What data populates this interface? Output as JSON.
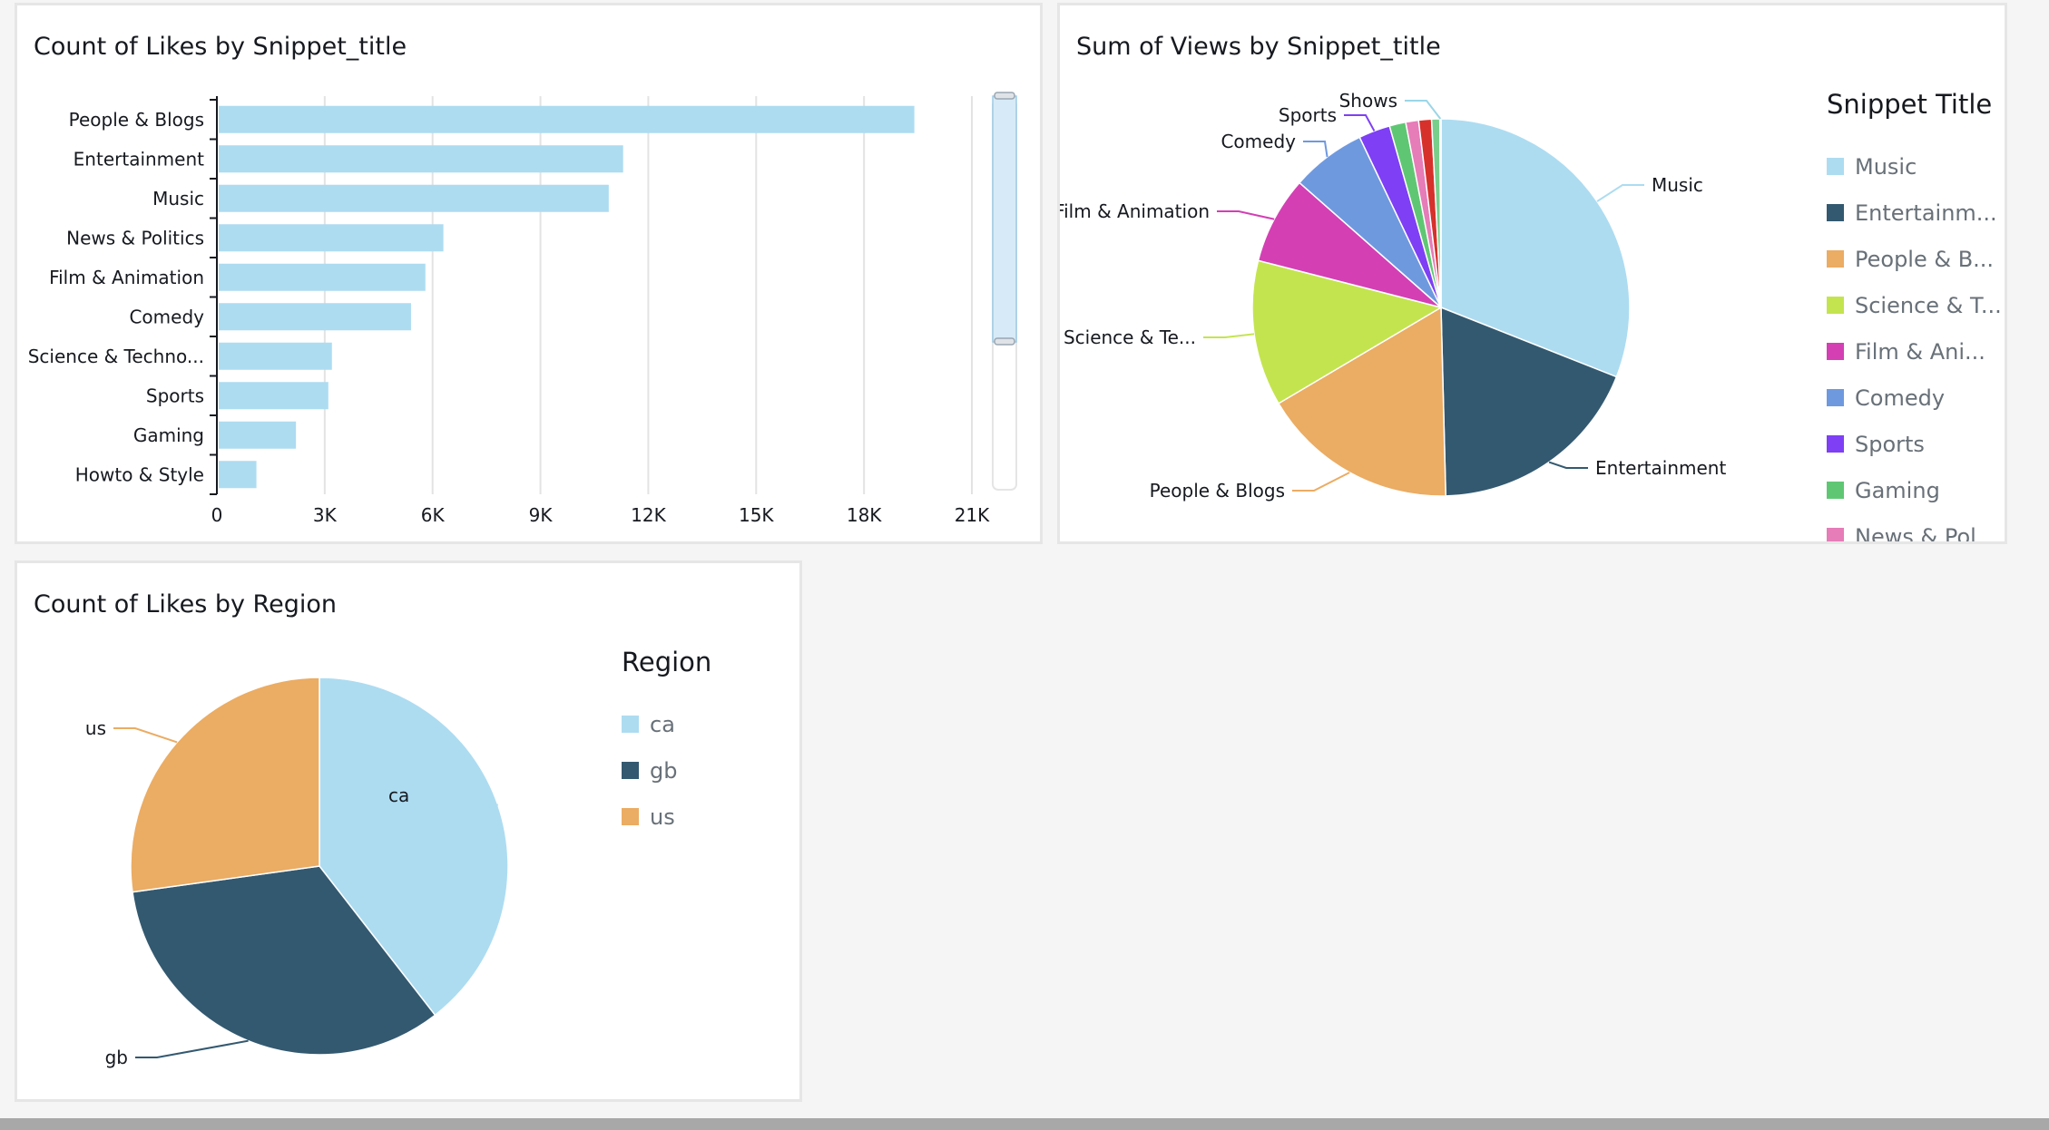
{
  "chart_data": [
    {
      "type": "bar",
      "orientation": "horizontal",
      "title": "Count of Likes by Snippet_title",
      "categories": [
        "People & Blogs",
        "Entertainment",
        "Music",
        "News & Politics",
        "Film & Animation",
        "Comedy",
        "Science & Techno...",
        "Sports",
        "Gaming",
        "Howto & Style"
      ],
      "values": [
        19400,
        11300,
        10900,
        6300,
        5800,
        5400,
        3200,
        3100,
        2200,
        1100
      ],
      "xticks": [
        "0",
        "3K",
        "6K",
        "9K",
        "12K",
        "15K",
        "18K",
        "21K"
      ],
      "xlim": [
        0,
        21000
      ],
      "grid": true,
      "color": "#addcf1"
    },
    {
      "type": "pie",
      "title": "Sum of Views by Snippet_title",
      "legend_title": "Snippet Title",
      "legend_position": "right",
      "slices": [
        {
          "label": "Music",
          "legend": "Music",
          "value": 31.0,
          "color": "#addcf1"
        },
        {
          "label": "Entertainment",
          "legend": "Entertainm...",
          "value": 18.6,
          "color": "#335970"
        },
        {
          "label": "People & Blogs",
          "legend": "People & B...",
          "value": 16.9,
          "color": "#ebac63"
        },
        {
          "label": "Science & Te...",
          "legend": "Science & T...",
          "value": 12.5,
          "color": "#c4e44f"
        },
        {
          "label": "Film & Animation",
          "legend": "Film & Ani...",
          "value": 7.5,
          "color": "#d43fb4"
        },
        {
          "label": "Comedy",
          "legend": "Comedy",
          "value": 6.4,
          "color": "#6f99df"
        },
        {
          "label": "Sports",
          "legend": "Sports",
          "value": 2.7,
          "color": "#7e3ff5"
        },
        {
          "label": "",
          "legend": "Gaming",
          "value": 1.4,
          "color": "#5fc774"
        },
        {
          "label": "",
          "legend": "News & Pol...",
          "value": 1.1,
          "color": "#e67cb8"
        },
        {
          "label": "",
          "legend": "",
          "value": 1.1,
          "color": "#d6312b"
        },
        {
          "label": "",
          "legend": "",
          "value": 0.7,
          "color": "#78cf8b"
        },
        {
          "label": "Shows",
          "legend": "",
          "value": 0.1,
          "color": "#9ad6e8"
        }
      ]
    },
    {
      "type": "pie",
      "title": "Count of Likes by Region",
      "legend_title": "Region",
      "legend_position": "right",
      "slices": [
        {
          "label": "ca",
          "legend": "ca",
          "value": 39.5,
          "color": "#addcf1"
        },
        {
          "label": "gb",
          "legend": "gb",
          "value": 33.3,
          "color": "#335970"
        },
        {
          "label": "us",
          "legend": "us",
          "value": 27.2,
          "color": "#ebac63"
        }
      ]
    }
  ]
}
